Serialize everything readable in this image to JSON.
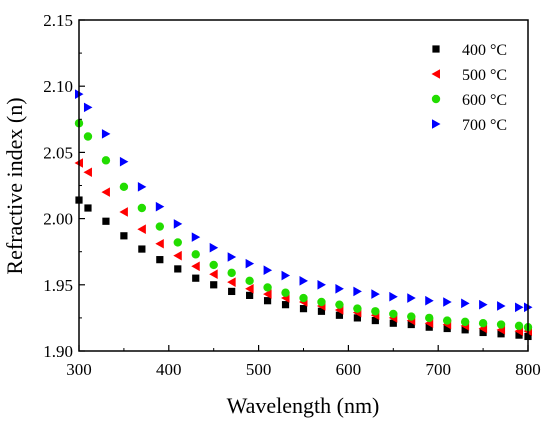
{
  "chart_data": {
    "type": "scatter",
    "xlabel": "Wavelength (nm)",
    "ylabel": "Refractive index (n)",
    "xlim": [
      300,
      800
    ],
    "ylim": [
      1.9,
      2.15
    ],
    "xticks": [
      "300",
      "400",
      "500",
      "600",
      "700",
      "800"
    ],
    "yticks": [
      "1.90",
      "1.95",
      "2.00",
      "2.05",
      "2.10",
      "2.15"
    ],
    "grid": false,
    "legend_position": "top-right",
    "x": [
      300,
      310,
      330,
      350,
      370,
      390,
      410,
      430,
      450,
      470,
      490,
      510,
      530,
      550,
      570,
      590,
      610,
      630,
      650,
      670,
      690,
      710,
      730,
      750,
      770,
      790,
      800
    ],
    "series": [
      {
        "name": "400 °C",
        "color": "#000000",
        "marker": "square",
        "values": [
          2.014,
          2.008,
          1.998,
          1.987,
          1.977,
          1.969,
          1.962,
          1.955,
          1.95,
          1.945,
          1.942,
          1.938,
          1.935,
          1.932,
          1.93,
          1.927,
          1.925,
          1.923,
          1.921,
          1.92,
          1.918,
          1.917,
          1.916,
          1.914,
          1.913,
          1.912,
          1.911
        ]
      },
      {
        "name": "500 °C",
        "color": "#ff0000",
        "marker": "triangle-left",
        "values": [
          2.042,
          2.035,
          2.02,
          2.005,
          1.992,
          1.981,
          1.972,
          1.964,
          1.958,
          1.952,
          1.947,
          1.943,
          1.94,
          1.937,
          1.934,
          1.931,
          1.929,
          1.927,
          1.925,
          1.923,
          1.921,
          1.92,
          1.919,
          1.917,
          1.916,
          1.915,
          1.915
        ]
      },
      {
        "name": "600 °C",
        "color": "#22dd00",
        "marker": "circle",
        "values": [
          2.072,
          2.062,
          2.044,
          2.024,
          2.008,
          1.994,
          1.982,
          1.973,
          1.965,
          1.959,
          1.953,
          1.948,
          1.944,
          1.94,
          1.937,
          1.935,
          1.932,
          1.93,
          1.928,
          1.926,
          1.925,
          1.923,
          1.922,
          1.921,
          1.92,
          1.919,
          1.918
        ]
      },
      {
        "name": "700 °C",
        "color": "#0000ff",
        "marker": "triangle-right",
        "values": [
          2.094,
          2.084,
          2.064,
          2.043,
          2.024,
          2.009,
          1.996,
          1.986,
          1.978,
          1.971,
          1.966,
          1.961,
          1.957,
          1.953,
          1.95,
          1.947,
          1.945,
          1.943,
          1.941,
          1.94,
          1.938,
          1.937,
          1.936,
          1.935,
          1.934,
          1.933,
          1.933
        ]
      }
    ]
  }
}
